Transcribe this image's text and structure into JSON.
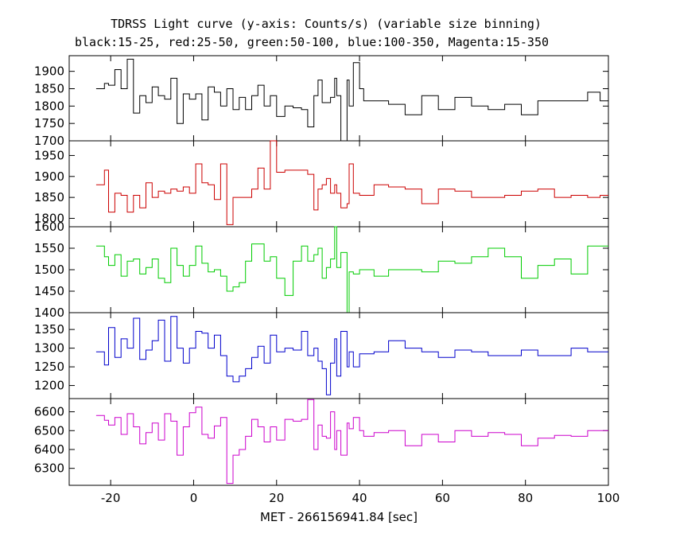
{
  "chart_data": {
    "type": "line",
    "title": "TDRSS Light curve (y-axis: Counts/s) (variable size binning)",
    "subtitle": "black:15-25, red:25-50, green:50-100, blue:100-350, Magenta:15-350",
    "xlabel": "MET - 266156941.84 [sec]",
    "xlim": [
      -30,
      100
    ],
    "xticks": [
      -20,
      0,
      20,
      40,
      60,
      80,
      100
    ],
    "grid": false,
    "panels": [
      {
        "name": "black",
        "color": "#000000",
        "ylim": [
          1700,
          1945
        ],
        "yticks": [
          1700,
          1750,
          1800,
          1850,
          1900
        ],
        "edges": [
          -23.5,
          -21.5,
          -20.5,
          -19,
          -17.5,
          -16,
          -14.5,
          -13,
          -11.5,
          -10,
          -8.5,
          -7,
          -5.5,
          -4,
          -2.5,
          -1,
          0.5,
          2,
          3.5,
          5,
          6.5,
          8,
          9.5,
          11,
          12.5,
          14,
          15.5,
          17,
          18.5,
          20,
          22,
          24,
          26,
          27.5,
          29,
          30,
          31,
          32,
          33,
          34,
          34.5,
          35.5,
          37,
          37.5,
          38.5,
          40,
          41,
          43.5,
          47,
          51,
          55,
          59,
          63,
          67,
          71,
          75,
          79,
          83,
          87,
          91,
          95,
          98,
          100
        ],
        "values": [
          1850,
          1865,
          1860,
          1905,
          1850,
          1935,
          1780,
          1830,
          1810,
          1855,
          1830,
          1820,
          1880,
          1750,
          1835,
          1820,
          1835,
          1760,
          1855,
          1840,
          1800,
          1850,
          1790,
          1825,
          1790,
          1830,
          1860,
          1800,
          1830,
          1770,
          1800,
          1795,
          1790,
          1740,
          1830,
          1875,
          1810,
          1810,
          1825,
          1880,
          1830,
          1700,
          1875,
          1800,
          1925,
          1850,
          1815,
          1815,
          1805,
          1775,
          1830,
          1790,
          1825,
          1800,
          1790,
          1805,
          1775,
          1815,
          1815,
          1815,
          1840,
          1815
        ]
      },
      {
        "name": "red",
        "color": "#cc0000",
        "ylim": [
          1780,
          1985
        ],
        "yticks": [
          1800,
          1850,
          1900,
          1950
        ],
        "edges": [
          -23.5,
          -21.5,
          -20.5,
          -19,
          -17.5,
          -16,
          -14.5,
          -13,
          -11.5,
          -10,
          -8.5,
          -7,
          -5.5,
          -4,
          -2.5,
          -1,
          0.5,
          2,
          3.5,
          5,
          6.5,
          8,
          9.5,
          11,
          12.5,
          14,
          15.5,
          17,
          18.5,
          20,
          22,
          24,
          26,
          27.5,
          29,
          30,
          31,
          32,
          33,
          34,
          34.5,
          35.5,
          37,
          37.5,
          38.5,
          40,
          41,
          43.5,
          47,
          51,
          55,
          59,
          63,
          67,
          71,
          75,
          79,
          83,
          87,
          91,
          95,
          98,
          100
        ],
        "values": [
          1880,
          1915,
          1815,
          1860,
          1855,
          1815,
          1855,
          1825,
          1885,
          1850,
          1865,
          1860,
          1870,
          1865,
          1875,
          1860,
          1930,
          1885,
          1880,
          1845,
          1930,
          1785,
          1850,
          1850,
          1850,
          1870,
          1920,
          1870,
          1985,
          1910,
          1915,
          1915,
          1915,
          1905,
          1820,
          1870,
          1880,
          1895,
          1860,
          1880,
          1860,
          1825,
          1835,
          1930,
          1860,
          1855,
          1855,
          1880,
          1875,
          1870,
          1835,
          1870,
          1865,
          1850,
          1850,
          1855,
          1865,
          1870,
          1850,
          1855,
          1850,
          1855
        ]
      },
      {
        "name": "green",
        "color": "#00cc00",
        "ylim": [
          1400,
          1600
        ],
        "yticks": [
          1400,
          1450,
          1500,
          1550,
          1600
        ],
        "edges": [
          -23.5,
          -21.5,
          -20.5,
          -19,
          -17.5,
          -16,
          -14.5,
          -13,
          -11.5,
          -10,
          -8.5,
          -7,
          -5.5,
          -4,
          -2.5,
          -1,
          0.5,
          2,
          3.5,
          5,
          6.5,
          8,
          9.5,
          11,
          12.5,
          14,
          15.5,
          17,
          18.5,
          20,
          22,
          24,
          26,
          27.5,
          29,
          30,
          31,
          32,
          33,
          34,
          34.5,
          35.5,
          37,
          37.5,
          38.5,
          40,
          41,
          43.5,
          47,
          51,
          55,
          59,
          63,
          67,
          71,
          75,
          79,
          83,
          87,
          91,
          95,
          98,
          100
        ],
        "values": [
          1555,
          1530,
          1510,
          1535,
          1485,
          1520,
          1525,
          1490,
          1505,
          1525,
          1480,
          1470,
          1550,
          1510,
          1485,
          1510,
          1555,
          1515,
          1495,
          1500,
          1485,
          1450,
          1460,
          1470,
          1520,
          1560,
          1560,
          1520,
          1530,
          1480,
          1440,
          1520,
          1555,
          1520,
          1535,
          1550,
          1480,
          1505,
          1525,
          1600,
          1505,
          1540,
          1400,
          1495,
          1490,
          1500,
          1500,
          1485,
          1500,
          1500,
          1495,
          1520,
          1515,
          1530,
          1550,
          1530,
          1480,
          1510,
          1525,
          1490,
          1555,
          1555
        ]
      },
      {
        "name": "blue",
        "color": "#0000cc",
        "ylim": [
          1165,
          1395
        ],
        "yticks": [
          1200,
          1250,
          1300,
          1350
        ],
        "edges": [
          -23.5,
          -21.5,
          -20.5,
          -19,
          -17.5,
          -16,
          -14.5,
          -13,
          -11.5,
          -10,
          -8.5,
          -7,
          -5.5,
          -4,
          -2.5,
          -1,
          0.5,
          2,
          3.5,
          5,
          6.5,
          8,
          9.5,
          11,
          12.5,
          14,
          15.5,
          17,
          18.5,
          20,
          22,
          24,
          26,
          27.5,
          29,
          30,
          31,
          32,
          33,
          34,
          34.5,
          35.5,
          37,
          37.5,
          38.5,
          40,
          41,
          43.5,
          47,
          51,
          55,
          59,
          63,
          67,
          71,
          75,
          79,
          83,
          87,
          91,
          95,
          98,
          100
        ],
        "values": [
          1290,
          1255,
          1355,
          1275,
          1325,
          1300,
          1380,
          1270,
          1295,
          1320,
          1375,
          1265,
          1385,
          1300,
          1260,
          1300,
          1345,
          1340,
          1300,
          1335,
          1280,
          1225,
          1210,
          1225,
          1245,
          1275,
          1305,
          1260,
          1335,
          1290,
          1300,
          1295,
          1345,
          1280,
          1300,
          1265,
          1245,
          1175,
          1260,
          1325,
          1225,
          1345,
          1250,
          1290,
          1250,
          1285,
          1285,
          1290,
          1320,
          1300,
          1290,
          1275,
          1295,
          1290,
          1280,
          1280,
          1295,
          1280,
          1280,
          1300,
          1290,
          1290
        ]
      },
      {
        "name": "magenta",
        "color": "#cc00cc",
        "ylim": [
          6210,
          6670
        ],
        "yticks": [
          6300,
          6400,
          6500,
          6600
        ],
        "edges": [
          -23.5,
          -21.5,
          -20.5,
          -19,
          -17.5,
          -16,
          -14.5,
          -13,
          -11.5,
          -10,
          -8.5,
          -7,
          -5.5,
          -4,
          -2.5,
          -1,
          0.5,
          2,
          3.5,
          5,
          6.5,
          8,
          9.5,
          11,
          12.5,
          14,
          15.5,
          17,
          18.5,
          20,
          22,
          24,
          26,
          27.5,
          29,
          30,
          31,
          32,
          33,
          34,
          34.5,
          35.5,
          37,
          37.5,
          38.5,
          40,
          41,
          43.5,
          47,
          51,
          55,
          59,
          63,
          67,
          71,
          75,
          79,
          83,
          87,
          91,
          95,
          98,
          100
        ],
        "values": [
          6580,
          6555,
          6530,
          6570,
          6480,
          6590,
          6520,
          6430,
          6490,
          6540,
          6450,
          6590,
          6550,
          6370,
          6520,
          6595,
          6625,
          6480,
          6460,
          6525,
          6570,
          6220,
          6370,
          6400,
          6470,
          6560,
          6520,
          6440,
          6520,
          6450,
          6560,
          6550,
          6560,
          6665,
          6400,
          6530,
          6470,
          6460,
          6600,
          6400,
          6500,
          6370,
          6540,
          6510,
          6570,
          6500,
          6470,
          6490,
          6500,
          6420,
          6480,
          6440,
          6500,
          6470,
          6490,
          6480,
          6420,
          6460,
          6475,
          6470,
          6500,
          6500
        ]
      }
    ]
  }
}
